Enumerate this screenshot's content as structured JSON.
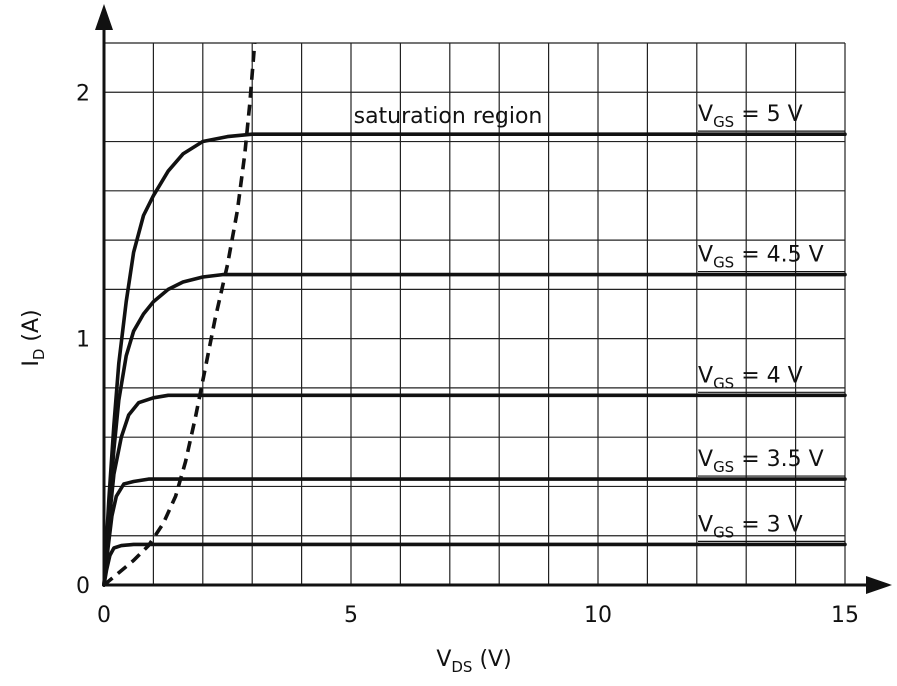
{
  "chart_data": {
    "type": "line",
    "xlabel": {
      "main": "V",
      "sub": "DS",
      "unit": " (V)"
    },
    "ylabel": {
      "main": "I",
      "sub": "D",
      "unit": " (A)"
    },
    "xlim": [
      0,
      15
    ],
    "ylim": [
      0,
      2.2
    ],
    "x_ticks": [
      0,
      5,
      10,
      15
    ],
    "y_ticks": [
      0,
      1,
      2
    ],
    "x_grid_step": 1,
    "y_grid_step": 0.2,
    "grid": true,
    "annotation": "saturation region",
    "series": [
      {
        "vgs": 5,
        "label_prefix": "V",
        "label_sub": "GS",
        "label_value": " = 5 V",
        "points": [
          [
            0,
            0
          ],
          [
            0.1,
            0.35
          ],
          [
            0.2,
            0.65
          ],
          [
            0.3,
            0.9
          ],
          [
            0.45,
            1.15
          ],
          [
            0.6,
            1.35
          ],
          [
            0.8,
            1.5
          ],
          [
            1.0,
            1.58
          ],
          [
            1.3,
            1.68
          ],
          [
            1.6,
            1.75
          ],
          [
            2.0,
            1.8
          ],
          [
            2.5,
            1.82
          ],
          [
            3.0,
            1.83
          ],
          [
            15,
            1.83
          ]
        ]
      },
      {
        "vgs": 4.5,
        "label_prefix": "V",
        "label_sub": "GS",
        "label_value": " = 4.5 V",
        "points": [
          [
            0,
            0
          ],
          [
            0.1,
            0.3
          ],
          [
            0.2,
            0.55
          ],
          [
            0.3,
            0.75
          ],
          [
            0.45,
            0.93
          ],
          [
            0.6,
            1.03
          ],
          [
            0.8,
            1.1
          ],
          [
            1.0,
            1.15
          ],
          [
            1.3,
            1.2
          ],
          [
            1.6,
            1.23
          ],
          [
            2.0,
            1.25
          ],
          [
            2.4,
            1.26
          ],
          [
            15,
            1.26
          ]
        ]
      },
      {
        "vgs": 4,
        "label_prefix": "V",
        "label_sub": "GS",
        "label_value": " = 4 V",
        "points": [
          [
            0,
            0
          ],
          [
            0.1,
            0.25
          ],
          [
            0.2,
            0.45
          ],
          [
            0.35,
            0.6
          ],
          [
            0.5,
            0.69
          ],
          [
            0.7,
            0.74
          ],
          [
            1.0,
            0.76
          ],
          [
            1.3,
            0.77
          ],
          [
            1.9,
            0.77
          ],
          [
            15,
            0.77
          ]
        ]
      },
      {
        "vgs": 3.5,
        "label_prefix": "V",
        "label_sub": "GS",
        "label_value": " = 3.5 V",
        "points": [
          [
            0,
            0
          ],
          [
            0.08,
            0.15
          ],
          [
            0.16,
            0.28
          ],
          [
            0.25,
            0.36
          ],
          [
            0.4,
            0.41
          ],
          [
            0.6,
            0.42
          ],
          [
            0.9,
            0.43
          ],
          [
            1.3,
            0.43
          ],
          [
            15,
            0.43
          ]
        ]
      },
      {
        "vgs": 3,
        "label_prefix": "V",
        "label_sub": "GS",
        "label_value": " = 3 V",
        "points": [
          [
            0,
            0
          ],
          [
            0.05,
            0.06
          ],
          [
            0.12,
            0.12
          ],
          [
            0.2,
            0.15
          ],
          [
            0.35,
            0.16
          ],
          [
            0.6,
            0.165
          ],
          [
            15,
            0.165
          ]
        ]
      }
    ],
    "boundary": {
      "style": "dashed",
      "points": [
        [
          0,
          0
        ],
        [
          0.3,
          0.05
        ],
        [
          0.6,
          0.1
        ],
        [
          0.9,
          0.16
        ],
        [
          1.2,
          0.25
        ],
        [
          1.45,
          0.36
        ],
        [
          1.65,
          0.5
        ],
        [
          1.85,
          0.68
        ],
        [
          2.05,
          0.88
        ],
        [
          2.25,
          1.08
        ],
        [
          2.5,
          1.3
        ],
        [
          2.7,
          1.52
        ],
        [
          2.85,
          1.75
        ],
        [
          2.95,
          1.95
        ],
        [
          3.05,
          2.2
        ]
      ]
    }
  }
}
